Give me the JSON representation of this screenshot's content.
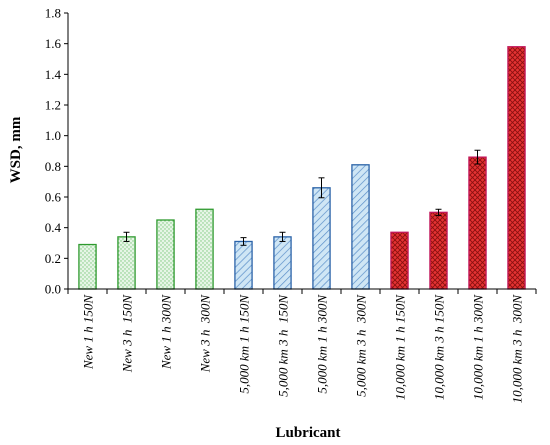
{
  "chart_data": {
    "type": "bar",
    "xlabel": "Lubricant",
    "ylabel": "WSD, mm",
    "ylim": [
      0,
      1.8
    ],
    "yticks": [
      "0.0",
      "0.2",
      "0.4",
      "0.6",
      "0.8",
      "1.0",
      "1.2",
      "1.4",
      "1.6",
      "1.8"
    ],
    "grid": false,
    "legend": "none",
    "categories": [
      "New 1 h 150N",
      "New 3 h  150N",
      "New 1 h 300N",
      "New 3 h  300N",
      "5,000 km 1 h 150N",
      "5,000 km 3 h  150N",
      "5,000 km 1 h 300N",
      "5,000 km 3 h  300N",
      "10,000 km 1 h 150N",
      "10,000 km 3 h 150N",
      "10,000 km 1 h 300N",
      "10,000 km 3 h  300N"
    ],
    "values": [
      0.29,
      0.34,
      0.45,
      0.52,
      0.31,
      0.34,
      0.66,
      0.81,
      0.37,
      0.5,
      0.86,
      1.58
    ],
    "errors": [
      0.0,
      0.03,
      0.0,
      0.0,
      0.025,
      0.03,
      0.065,
      0.0,
      0.0,
      0.02,
      0.045,
      0.0
    ],
    "groups": [
      {
        "indices": [
          0,
          1,
          2,
          3
        ],
        "fill": "#e6f5e6",
        "stroke": "#2e9a2e",
        "pattern": "dots",
        "pattern_color": "#7cc87c"
      },
      {
        "indices": [
          4,
          5,
          6,
          7
        ],
        "fill": "#cfe6f5",
        "stroke": "#2b63a8",
        "pattern": "diagonal",
        "pattern_color": "#5b8fc9"
      },
      {
        "indices": [
          8,
          9,
          10,
          11
        ],
        "fill": "#e53333",
        "stroke": "#c2185b",
        "pattern": "crosshatch",
        "pattern_color": "#8b1010"
      }
    ]
  }
}
